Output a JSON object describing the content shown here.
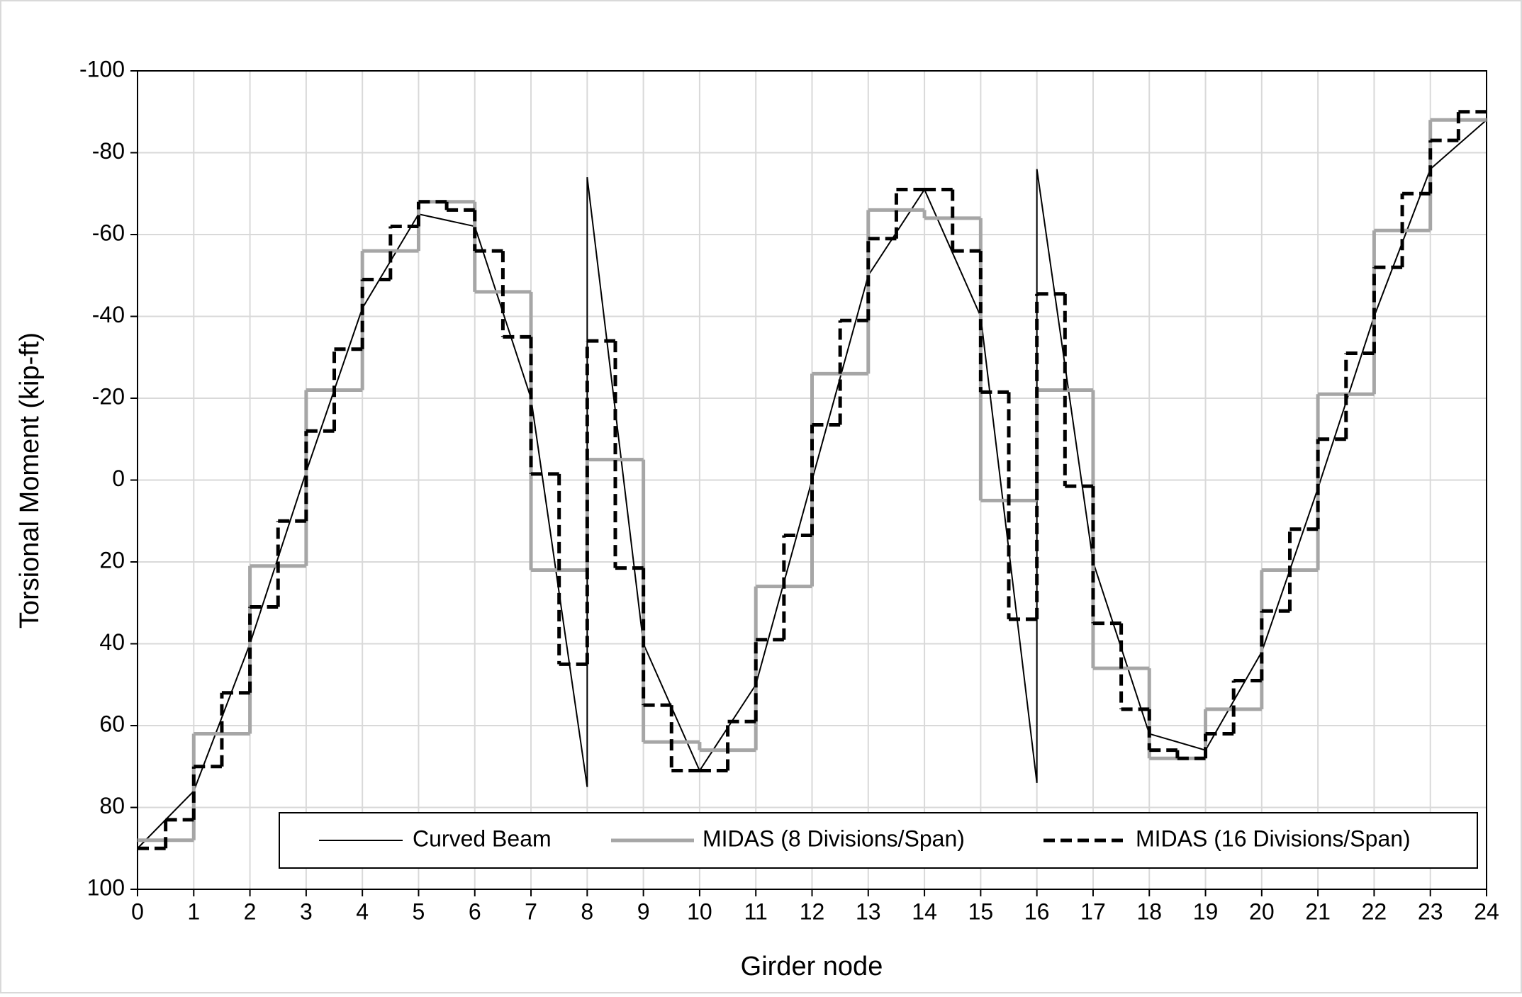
{
  "chart_data": {
    "type": "line",
    "x_label": "Girder node",
    "y_label": "Torsional Moment (kip-ft)",
    "xlim": [
      0,
      24
    ],
    "xticks": [
      0,
      1,
      2,
      3,
      4,
      5,
      6,
      7,
      8,
      9,
      10,
      11,
      12,
      13,
      14,
      15,
      16,
      17,
      18,
      19,
      20,
      21,
      22,
      23,
      24
    ],
    "ylim": [
      -100,
      100
    ],
    "y_inverted": true,
    "yticks": [
      -100,
      -80,
      -60,
      -40,
      -20,
      0,
      20,
      40,
      60,
      80,
      100
    ],
    "grid": true,
    "legend": "lower right",
    "series": [
      {
        "name": "Curved Beam",
        "color": "#000000",
        "style": "solid",
        "x": [
          0,
          1,
          2,
          3,
          4,
          5,
          6,
          7,
          8,
          8,
          9,
          10,
          11,
          12,
          13,
          14,
          15,
          16,
          16,
          17,
          18,
          19,
          20,
          21,
          22,
          23,
          24
        ],
        "values": [
          90,
          76,
          40,
          -2,
          -42,
          -65,
          -62,
          -20,
          75,
          -74,
          40,
          71,
          50,
          0,
          -50,
          -71,
          -40,
          74,
          -76,
          20,
          62,
          66,
          42,
          2,
          -40,
          -76,
          -88
        ]
      },
      {
        "name": "MIDAS (8 Divisions/Span)",
        "color": "#a6a6a6",
        "style": "solid",
        "bins": [
          0,
          1,
          2,
          3,
          4,
          5,
          6,
          7,
          8,
          9,
          10,
          11,
          12,
          13,
          14,
          15,
          16,
          17,
          18,
          19,
          20,
          21,
          22,
          23,
          24
        ],
        "values": [
          88,
          62,
          21,
          -22,
          -56,
          -68,
          -46,
          22,
          -5,
          64,
          66,
          26,
          -26,
          -66,
          -64,
          5,
          -22,
          46,
          68,
          56,
          22,
          -21,
          -61,
          -88
        ]
      },
      {
        "name": "MIDAS (16 Divisions/Span)",
        "color": "#000000",
        "style": "dashed",
        "bins": [
          0,
          0.5,
          1,
          1.5,
          2,
          2.5,
          3,
          3.5,
          4,
          4.5,
          5,
          5.5,
          6,
          6.5,
          7,
          7.5,
          8,
          8.5,
          9,
          9.5,
          10,
          10.5,
          11,
          11.5,
          12,
          12.5,
          13,
          13.5,
          14,
          14.5,
          15,
          15.5,
          16,
          16.5,
          17,
          17.5,
          18,
          18.5,
          19,
          19.5,
          20,
          20.5,
          21,
          21.5,
          22,
          22.5,
          23,
          23.5,
          24
        ],
        "values": [
          90,
          83,
          70,
          52,
          31,
          10,
          -12,
          -32,
          -49,
          -62,
          -68,
          -66,
          -56,
          -35,
          -1.5,
          45,
          -34,
          21.5,
          55,
          71,
          71,
          59,
          39,
          13.5,
          -13.5,
          -39,
          -59,
          -71,
          -71,
          -56,
          -21.5,
          34,
          -45.5,
          1.5,
          35,
          56,
          66,
          68,
          62,
          49,
          32,
          12,
          -10,
          -31,
          -52,
          -70,
          -83,
          -90
        ]
      }
    ]
  }
}
